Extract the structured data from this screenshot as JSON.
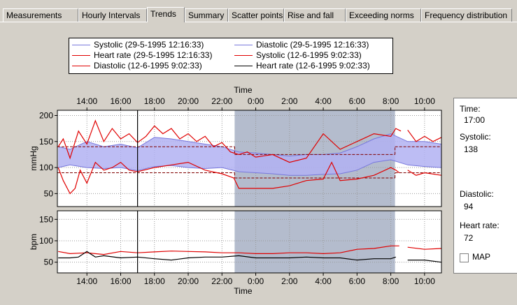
{
  "tabs": [
    {
      "label": "Measurements",
      "active": false
    },
    {
      "label": "Hourly Intervals",
      "active": false
    },
    {
      "label": "Trends",
      "active": true
    },
    {
      "label": "Summary",
      "active": false
    },
    {
      "label": "Scatter points",
      "active": false
    },
    {
      "label": "Rise and fall",
      "active": false
    },
    {
      "label": "Exceeding norms",
      "active": false
    },
    {
      "label": "Frequency distribution",
      "active": false
    }
  ],
  "legend": [
    {
      "label": "Systolic (29-5-1995 12:16:33)",
      "color": "#7777dd"
    },
    {
      "label": "Diastolic (29-5-1995 12:16:33)",
      "color": "#7777dd"
    },
    {
      "label": "Heart rate (29-5-1995 12:16:33)",
      "color": "#e00000"
    },
    {
      "label": "Systolic (12-6-1995 9:02:33)",
      "color": "#e00000"
    },
    {
      "label": "Diastolic (12-6-1995 9:02:33)",
      "color": "#e00000"
    },
    {
      "label": "Heart rate (12-6-1995 9:02:33)",
      "color": "#000000"
    }
  ],
  "info": {
    "time_label": "Time:",
    "time_value": "17:00",
    "systolic_label": "Systolic:",
    "systolic_value": "138",
    "diastolic_label": "Diastolic:",
    "diastolic_value": "94",
    "hr_label": "Heart rate:",
    "hr_value": "72",
    "map_label": "MAP",
    "map_checked": false
  },
  "chart_data": {
    "type": "line",
    "xlabel": "Time",
    "x_ticks": [
      "14:00",
      "16:00",
      "18:00",
      "20:00",
      "22:00",
      "0:00",
      "2:00",
      "4:00",
      "6:00",
      "8:00",
      "10:00"
    ],
    "xlim_hours": [
      12.25,
      35.0
    ],
    "cursor_time": "17:00",
    "night_period": [
      "22:45",
      "8:15"
    ],
    "bp_panel": {
      "ylabel": "mmHg",
      "ylim": [
        25,
        210
      ],
      "yticks": [
        50,
        100,
        150,
        200
      ],
      "norm_day_systolic": 140,
      "norm_day_diastolic": 90,
      "norm_night_systolic": 125,
      "norm_night_diastolic": 80,
      "band_upper": [
        [
          12.3,
          140
        ],
        [
          13,
          135
        ],
        [
          14,
          150
        ],
        [
          15,
          140
        ],
        [
          16,
          145
        ],
        [
          17,
          138
        ],
        [
          18,
          158
        ],
        [
          19,
          155
        ],
        [
          20,
          150
        ],
        [
          21,
          145
        ],
        [
          22,
          140
        ],
        [
          23,
          130
        ],
        [
          24,
          128
        ],
        [
          25,
          125
        ],
        [
          26,
          122
        ],
        [
          27,
          125
        ],
        [
          28,
          125
        ],
        [
          29,
          128
        ],
        [
          30,
          140
        ],
        [
          31,
          155
        ],
        [
          32,
          165
        ],
        [
          33,
          150
        ],
        [
          34,
          150
        ],
        [
          35,
          145
        ]
      ],
      "band_lower": [
        [
          12.3,
          100
        ],
        [
          13,
          105
        ],
        [
          14,
          100
        ],
        [
          15,
          98
        ],
        [
          16,
          100
        ],
        [
          17,
          94
        ],
        [
          18,
          102
        ],
        [
          19,
          104
        ],
        [
          20,
          100
        ],
        [
          21,
          98
        ],
        [
          22,
          100
        ],
        [
          23,
          92
        ],
        [
          24,
          90
        ],
        [
          25,
          88
        ],
        [
          26,
          85
        ],
        [
          27,
          85
        ],
        [
          28,
          87
        ],
        [
          29,
          88
        ],
        [
          30,
          95
        ],
        [
          31,
          110
        ],
        [
          32,
          115
        ],
        [
          33,
          105
        ],
        [
          34,
          102
        ],
        [
          35,
          100
        ]
      ],
      "systolic_red": [
        [
          12.3,
          140
        ],
        [
          12.6,
          155
        ],
        [
          13,
          118
        ],
        [
          13.5,
          170
        ],
        [
          14,
          145
        ],
        [
          14.5,
          190
        ],
        [
          15,
          150
        ],
        [
          15.5,
          175
        ],
        [
          16,
          155
        ],
        [
          16.5,
          165
        ],
        [
          17,
          148
        ],
        [
          17.5,
          160
        ],
        [
          18,
          180
        ],
        [
          18.5,
          165
        ],
        [
          19,
          175
        ],
        [
          19.5,
          155
        ],
        [
          20,
          165
        ],
        [
          20.5,
          150
        ],
        [
          21,
          160
        ],
        [
          21.5,
          140
        ],
        [
          22,
          148
        ],
        [
          22.5,
          130
        ],
        [
          23,
          125
        ],
        [
          23.5,
          130
        ],
        [
          24,
          120
        ],
        [
          25,
          125
        ],
        [
          26,
          110
        ],
        [
          27,
          118
        ],
        [
          28,
          165
        ],
        [
          29,
          135
        ],
        [
          30,
          150
        ],
        [
          31,
          165
        ],
        [
          32,
          160
        ],
        [
          32.3,
          175
        ],
        [
          32.6,
          170
        ],
        null,
        [
          33,
          172
        ],
        [
          33.5,
          150
        ],
        [
          34,
          160
        ],
        [
          34.5,
          150
        ],
        [
          35,
          158
        ]
      ],
      "diastolic_red": [
        [
          12.3,
          100
        ],
        [
          12.6,
          75
        ],
        [
          13,
          50
        ],
        [
          13.3,
          60
        ],
        [
          13.6,
          95
        ],
        [
          14,
          70
        ],
        [
          14.5,
          110
        ],
        [
          15,
          95
        ],
        [
          15.5,
          100
        ],
        [
          16,
          110
        ],
        [
          16.5,
          95
        ],
        [
          17,
          92
        ],
        [
          18,
          100
        ],
        [
          19,
          105
        ],
        [
          20,
          110
        ],
        [
          21,
          95
        ],
        [
          22,
          88
        ],
        [
          22.7,
          80
        ],
        [
          23,
          60
        ],
        [
          25,
          60
        ],
        [
          26,
          65
        ],
        [
          27,
          75
        ],
        [
          28,
          78
        ],
        [
          28.5,
          110
        ],
        [
          29,
          75
        ],
        [
          30,
          78
        ],
        [
          31,
          85
        ],
        [
          32,
          100
        ],
        [
          32.3,
          95
        ],
        [
          32.5,
          90
        ],
        null,
        [
          33,
          95
        ],
        [
          33.5,
          85
        ],
        [
          34,
          90
        ],
        [
          35,
          85
        ]
      ]
    },
    "hr_panel": {
      "ylabel": "bpm",
      "ylim": [
        25,
        170
      ],
      "yticks": [
        50,
        100,
        150
      ],
      "hr_red": [
        [
          12.3,
          75
        ],
        [
          13,
          70
        ],
        [
          14,
          72
        ],
        [
          15,
          68
        ],
        [
          16,
          75
        ],
        [
          17,
          72
        ],
        [
          18,
          74
        ],
        [
          19,
          76
        ],
        [
          20,
          75
        ],
        [
          21,
          74
        ],
        [
          22,
          72
        ],
        [
          23,
          72
        ],
        [
          24,
          70
        ],
        [
          25,
          70
        ],
        [
          26,
          72
        ],
        [
          27,
          72
        ],
        [
          28,
          70
        ],
        [
          29,
          72
        ],
        [
          30,
          80
        ],
        [
          31,
          82
        ],
        [
          32,
          88
        ],
        [
          32.5,
          88
        ],
        null,
        [
          33,
          85
        ],
        [
          34,
          80
        ],
        [
          35,
          82
        ]
      ],
      "hr_black": [
        [
          12.3,
          60
        ],
        [
          13,
          60
        ],
        [
          13.5,
          62
        ],
        [
          14,
          75
        ],
        [
          14.5,
          62
        ],
        [
          15,
          65
        ],
        [
          16,
          60
        ],
        [
          17,
          62
        ],
        [
          18,
          58
        ],
        [
          19,
          55
        ],
        [
          20,
          60
        ],
        [
          21,
          62
        ],
        [
          22,
          62
        ],
        [
          23,
          65
        ],
        [
          24,
          60
        ],
        [
          25,
          60
        ],
        [
          26,
          60
        ],
        [
          27,
          62
        ],
        [
          28,
          60
        ],
        [
          29,
          60
        ],
        [
          30,
          55
        ],
        [
          31,
          58
        ],
        [
          32,
          58
        ],
        [
          32.3,
          62
        ],
        null,
        [
          33,
          55
        ],
        [
          34,
          55
        ],
        [
          35,
          50
        ]
      ]
    }
  }
}
